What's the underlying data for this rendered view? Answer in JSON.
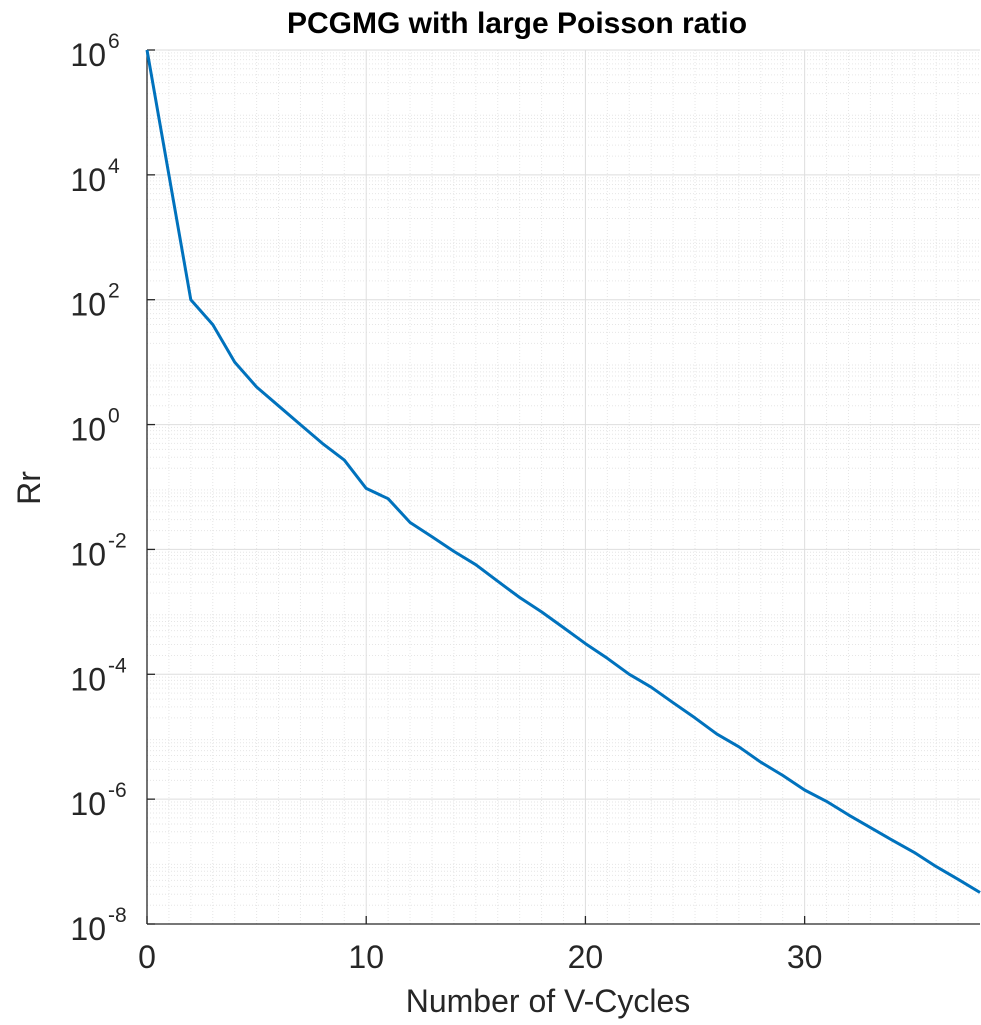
{
  "chart_data": {
    "type": "line",
    "title": "PCGMG with large Poisson ratio",
    "xlabel": "Number of V-Cycles",
    "ylabel": "Rr",
    "xlim": [
      0,
      38
    ],
    "ylim": [
      1e-08,
      1000000.0
    ],
    "yscale": "log",
    "grid": true,
    "minor_grid": true,
    "legend": "none",
    "x_ticks": [
      "0",
      "10",
      "20",
      "30"
    ],
    "y_ticks": [
      {
        "base": "10",
        "exp": "6"
      },
      {
        "base": "10",
        "exp": "4"
      },
      {
        "base": "10",
        "exp": "2"
      },
      {
        "base": "10",
        "exp": "0"
      },
      {
        "base": "10",
        "exp": "-2"
      },
      {
        "base": "10",
        "exp": "-4"
      },
      {
        "base": "10",
        "exp": "-6"
      },
      {
        "base": "10",
        "exp": "-8"
      }
    ],
    "series": [
      {
        "color": "#0072BD",
        "x": [
          0,
          2,
          3,
          4,
          5,
          6,
          7,
          8,
          9,
          10,
          11,
          12,
          13,
          14,
          15,
          16,
          17,
          18,
          19,
          20,
          21,
          22,
          23,
          24,
          25,
          26,
          27,
          28,
          29,
          30,
          31,
          32,
          33,
          34,
          35,
          36,
          37,
          38
        ],
        "y": [
          1000000.0,
          100,
          40,
          10,
          4,
          2,
          1,
          0.5,
          0.27,
          0.095,
          0.065,
          0.027,
          0.016,
          0.0093,
          0.0057,
          0.0031,
          0.0017,
          0.001,
          0.00056,
          0.00031,
          0.00018,
          0.0001,
          6.2e-05,
          3.5e-05,
          2e-05,
          1.1e-05,
          6.9e-06,
          3.9e-06,
          2.4e-06,
          1.4e-06,
          9.2e-07,
          5.6e-07,
          3.5e-07,
          2.2e-07,
          1.4e-07,
          8.3e-08,
          5.2e-08,
          3.2e-08
        ]
      }
    ]
  }
}
